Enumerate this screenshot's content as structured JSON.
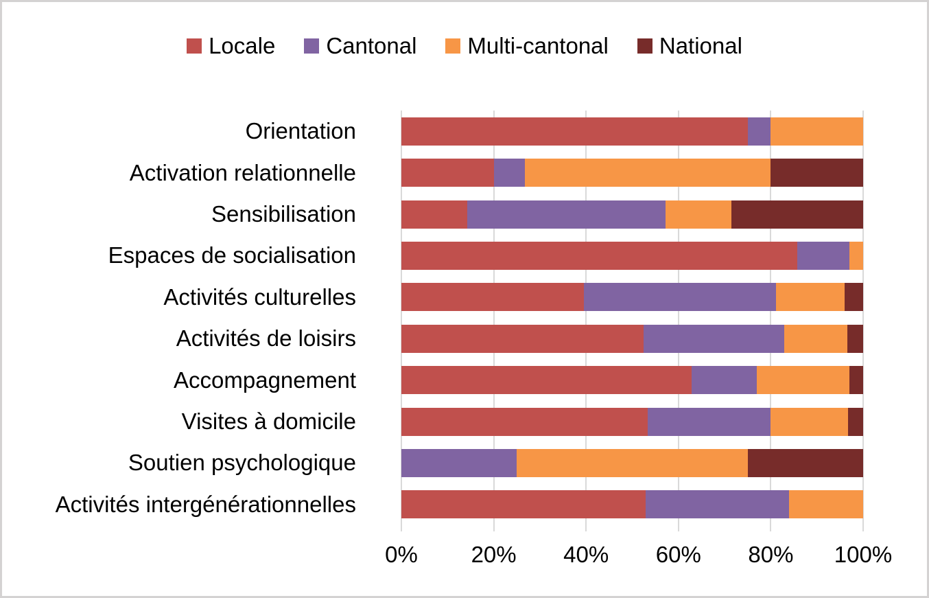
{
  "frame": {
    "background": "#ffffff",
    "border_color": "#d4d2d2"
  },
  "chart_data": {
    "type": "bar",
    "orientation": "horizontal",
    "stacked": true,
    "stacked_as": "percent-of-100",
    "title": "",
    "categories": [
      "Orientation",
      "Activation relationnelle",
      "Sensibilisation",
      "Espaces de socialisation",
      "Activités culturelles",
      "Activités de loisirs",
      "Accompagnement",
      "Visites à domicile",
      "Soutien psychologique",
      "Activités intergénérationnelles"
    ],
    "series": [
      {
        "name": "Locale",
        "color": "#c0504d",
        "values": [
          75,
          20,
          14.3,
          85.8,
          39.5,
          52.5,
          62.8,
          53.3,
          0,
          52.9
        ]
      },
      {
        "name": "Cantonal",
        "color": "#8064a2",
        "values": [
          5,
          6.7,
          42.9,
          11.2,
          41.7,
          30.4,
          14.1,
          26.7,
          25,
          31.1
        ]
      },
      {
        "name": "Multi-cantonal",
        "color": "#f79646",
        "values": [
          20,
          53.3,
          14.3,
          3.0,
          14.8,
          13.7,
          20.1,
          16.7,
          50,
          16.0
        ]
      },
      {
        "name": "National",
        "color": "#772c2a",
        "values": [
          0,
          20,
          28.5,
          0,
          4.0,
          3.4,
          3.0,
          3.3,
          25,
          0
        ]
      }
    ],
    "x_axis": {
      "min": 0,
      "max": 100,
      "unit": "%",
      "tick_labels": [
        "0%",
        "20%",
        "40%",
        "60%",
        "80%",
        "100%"
      ]
    },
    "legend": {
      "position": "top",
      "entries": [
        "Locale",
        "Cantonal",
        "Multi-cantonal",
        "National"
      ]
    },
    "grid": {
      "vertical_gridlines": true,
      "gridline_color": "#d9d9d9"
    }
  }
}
